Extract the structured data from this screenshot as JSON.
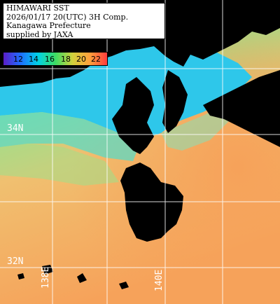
{
  "title": {
    "line1": "HIMAWARI SST",
    "line2": "2026/01/17 20(UTC) 3H Comp.",
    "line3": "Kanagawa Prefecture",
    "line4": "supplied by JAXA"
  },
  "legend": {
    "labels": [
      "12",
      "14",
      "16",
      "18",
      "20",
      "22"
    ],
    "colors": [
      "#5a1ec8",
      "#1e6eff",
      "#00d2e6",
      "#3cdc64",
      "#d2d23c",
      "#ffa03c",
      "#ff3c3c"
    ]
  },
  "grid": {
    "lat_labels": [
      "34N",
      "32N"
    ],
    "lon_labels": [
      "138E",
      "140E"
    ]
  },
  "map_colors": {
    "land": "#000000",
    "cold_water": "#2ec7ea",
    "cool_water": "#5cd9c4",
    "mild_water": "#9fe08a",
    "warm_water": "#f2b462",
    "hot_water": "#f6a25a",
    "grid": "#ffffff"
  }
}
